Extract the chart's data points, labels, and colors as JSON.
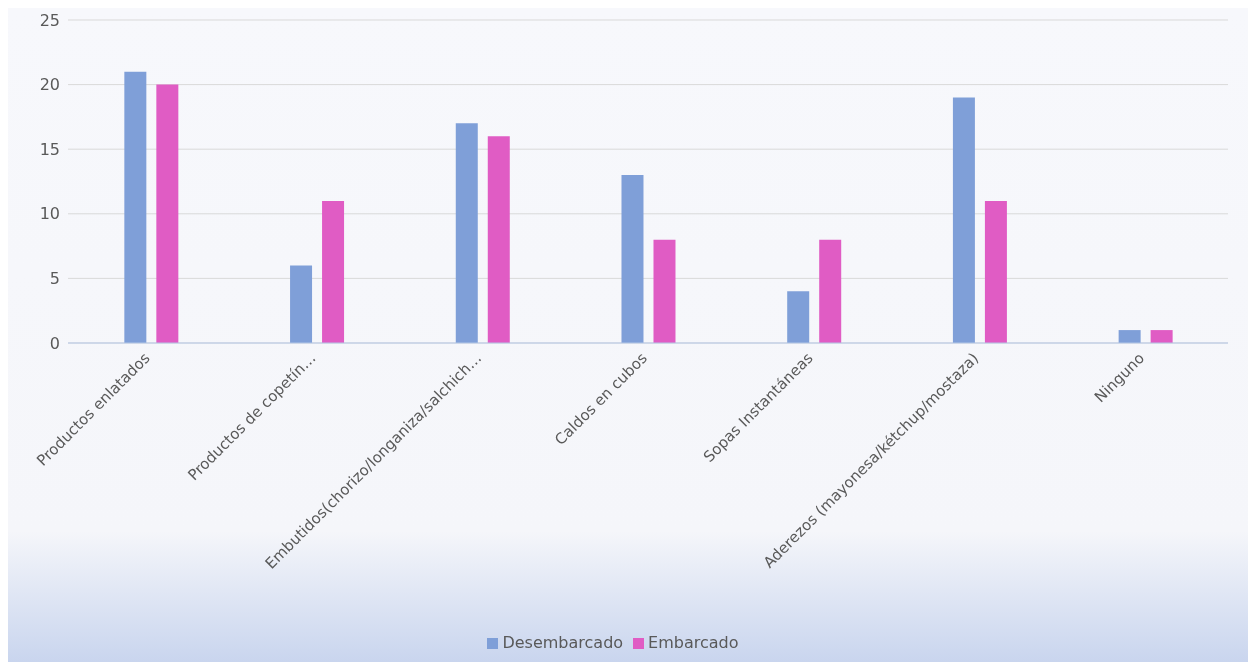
{
  "chart_data": {
    "type": "bar",
    "categories": [
      "Productos enlatados",
      "Productos de copetín…",
      "Embutidos(chorizo/longaniza/salchich…",
      "Caldos en cubos",
      "Sopas Instantáneas",
      "Aderezos (mayonesa/kétchup/mostaza)",
      "Ninguno"
    ],
    "series": [
      {
        "name": "Desembarcado",
        "color": "#7f9fd8",
        "values": [
          21,
          6,
          17,
          13,
          4,
          19,
          1
        ]
      },
      {
        "name": "Embarcado",
        "color": "#e05cc4",
        "values": [
          20,
          11,
          16,
          8,
          8,
          11,
          1
        ]
      }
    ],
    "ylim": [
      0,
      25
    ],
    "yticks": [
      0,
      5,
      10,
      15,
      20,
      25
    ],
    "grid": "y",
    "legend": "bottom"
  }
}
